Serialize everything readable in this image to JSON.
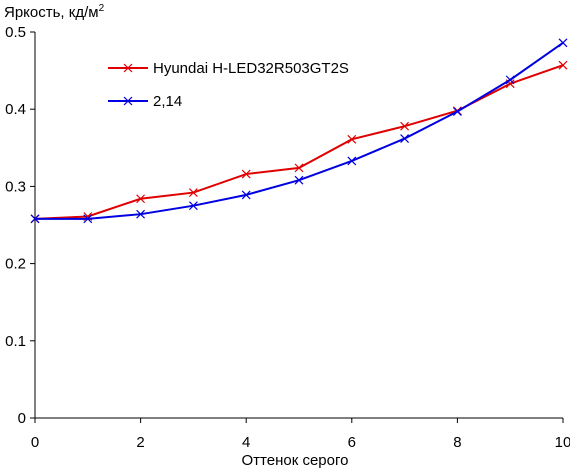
{
  "chart_data": {
    "type": "line",
    "title": "",
    "ylabel": "Яркость, кд/м",
    "ylabel_sup": "2",
    "xlabel": "Оттенок серого",
    "xlim": [
      0,
      10
    ],
    "ylim": [
      0,
      0.5
    ],
    "x_ticks": [
      "0",
      "2",
      "4",
      "6",
      "8",
      "10"
    ],
    "y_ticks": [
      "0",
      "0.1",
      "0.2",
      "0.3",
      "0.4",
      "0.5"
    ],
    "grid": false,
    "legend_position": "top-left",
    "x": [
      0,
      1,
      2,
      3,
      4,
      5,
      6,
      7,
      8,
      9,
      10
    ],
    "series": [
      {
        "name": "Hyundai H-LED32R503GT2S",
        "color": "#e00000",
        "marker": "x",
        "values": [
          0.258,
          0.261,
          0.284,
          0.292,
          0.316,
          0.324,
          0.361,
          0.378,
          0.398,
          0.433,
          0.457
        ]
      },
      {
        "name": "2,14",
        "color": "#0000e0",
        "marker": "x",
        "values": [
          0.258,
          0.258,
          0.264,
          0.275,
          0.289,
          0.308,
          0.333,
          0.362,
          0.397,
          0.438,
          0.486
        ]
      }
    ]
  }
}
